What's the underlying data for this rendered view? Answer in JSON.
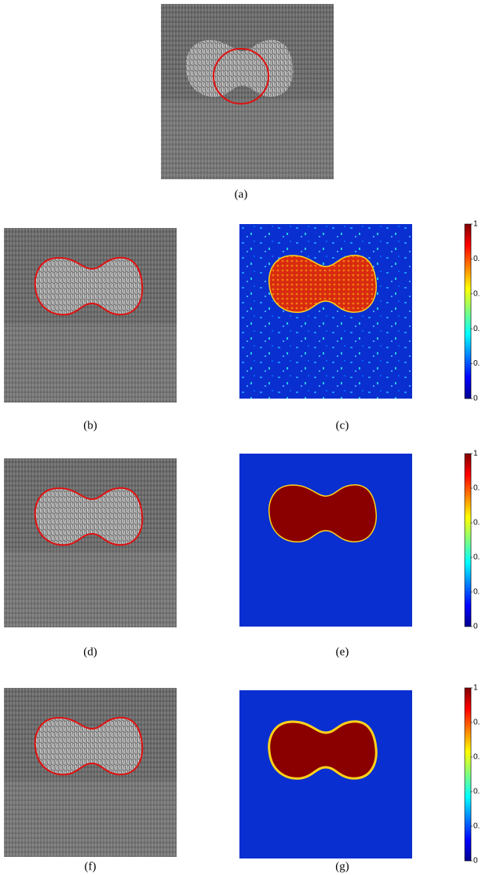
{
  "panels": [
    {
      "label": "(a)"
    },
    {
      "label": "(b)"
    },
    {
      "label": "(c)"
    },
    {
      "label": "(d)"
    },
    {
      "label": "(e)"
    },
    {
      "label": "(f)"
    },
    {
      "label": "(g)"
    }
  ],
  "colorbars": [
    {
      "ticks": [
        "1",
        "0.",
        "0.",
        "0.",
        "0.",
        "0"
      ]
    },
    {
      "ticks": [
        "1",
        "0.",
        "0.",
        "0.",
        "0.",
        "0"
      ]
    },
    {
      "ticks": [
        "1",
        "0.",
        "0.",
        "0.",
        "0.",
        "0"
      ]
    }
  ]
}
